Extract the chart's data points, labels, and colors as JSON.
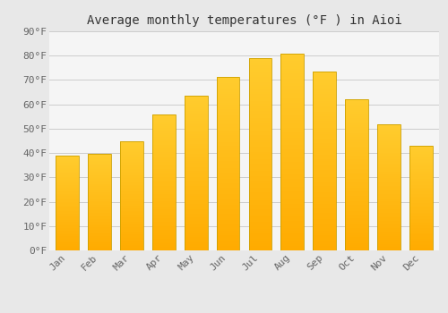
{
  "title": "Average monthly temperatures (°F ) in Aioi",
  "months": [
    "Jan",
    "Feb",
    "Mar",
    "Apr",
    "May",
    "Jun",
    "Jul",
    "Aug",
    "Sep",
    "Oct",
    "Nov",
    "Dec"
  ],
  "values": [
    38.8,
    39.7,
    44.8,
    55.8,
    63.7,
    71.4,
    79.0,
    80.8,
    73.4,
    62.2,
    51.8,
    43.0
  ],
  "bar_color_top": "#FFC825",
  "bar_color_bottom": "#FFAA00",
  "bar_edge_color": "#CCA000",
  "background_color": "#e8e8e8",
  "plot_bg_color": "#f5f5f5",
  "grid_color": "#cccccc",
  "text_color": "#666666",
  "title_color": "#333333",
  "ylim": [
    0,
    90
  ],
  "yticks": [
    0,
    10,
    20,
    30,
    40,
    50,
    60,
    70,
    80,
    90
  ],
  "title_fontsize": 10,
  "tick_fontsize": 8,
  "bar_width": 0.72
}
